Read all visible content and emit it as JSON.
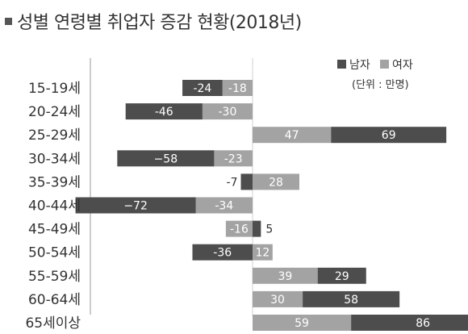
{
  "title": "성별 연령별 취업자 증감 현황(2018년)",
  "unit": "(단위 : 만명)",
  "colors": {
    "male": "#4d4d4d",
    "female": "#a3a3a3"
  },
  "chart_data": {
    "type": "bar",
    "orientation": "horizontal",
    "stacked": "diverging",
    "categories": [
      "15-19세",
      "20-24세",
      "25-29세",
      "30-34세",
      "35-39세",
      "40-44세",
      "45-49세",
      "50-54세",
      "55-59세",
      "60-64세",
      "65세이상"
    ],
    "series": [
      {
        "name": "남자",
        "values": [
          -24,
          -46,
          69,
          -58,
          -7,
          -72,
          5,
          -36,
          29,
          58,
          86
        ]
      },
      {
        "name": "여자",
        "values": [
          -18,
          -30,
          47,
          -23,
          28,
          -34,
          -16,
          12,
          39,
          30,
          59
        ]
      }
    ],
    "value_labels": {
      "남자": [
        "-24",
        "-46",
        "69",
        "−58",
        "-7",
        "−72",
        "5",
        "-36",
        "29",
        "58",
        "86"
      ],
      "여자": [
        "-18",
        "-30",
        "47",
        "-23",
        "28",
        "-34",
        "-16",
        "12",
        "39",
        "30",
        "59"
      ]
    },
    "legend_position": "top-right",
    "grid": false
  }
}
